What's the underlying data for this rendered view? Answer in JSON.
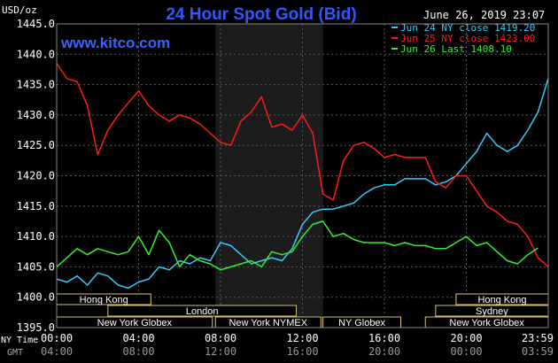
{
  "chart_data": {
    "type": "line",
    "title": "24 Hour Spot Gold (Bid)",
    "watermark": "www.kitco.com",
    "ylabel": "USD/oz",
    "timestamp": "June 26, 2019 23:07",
    "ylim": [
      1395.0,
      1445.0
    ],
    "yticks": [
      "1445.0",
      "1440.0",
      "1435.0",
      "1430.0",
      "1425.0",
      "1420.0",
      "1415.0",
      "1410.0",
      "1405.0",
      "1400.0",
      "1395.0"
    ],
    "xlim": [
      0,
      24
    ],
    "xticks_ny": [
      "00:00",
      "04:00",
      "08:00",
      "12:00",
      "16:00",
      "20:00",
      "23:59"
    ],
    "xticks_gmt": [
      "04:00",
      "08:00",
      "12:00",
      "16:00",
      "20:00",
      "00:00",
      "03:59"
    ],
    "xlabel_ny": "NY Time",
    "xlabel_gmt": "GMT",
    "grid": true,
    "legend_position": "top-right",
    "shaded_region": [
      7.75,
      13.0
    ],
    "series": [
      {
        "name": "Jun 24 NY close 1419.20",
        "color": "#33ccff",
        "x": [
          0,
          0.5,
          1,
          1.5,
          2,
          2.5,
          3,
          3.5,
          4,
          4.5,
          5,
          5.5,
          6,
          6.5,
          7,
          7.5,
          8,
          8.5,
          9,
          9.5,
          10,
          10.5,
          11,
          11.5,
          12,
          12.5,
          13,
          13.5,
          14,
          14.5,
          15,
          15.5,
          16,
          16.5,
          17,
          17.5,
          18,
          18.5,
          19,
          19.5,
          20,
          20.5,
          21,
          21.5,
          22,
          22.5,
          23,
          23.5,
          24
        ],
        "y": [
          1403,
          1402.5,
          1403.5,
          1402,
          1404,
          1403.5,
          1402,
          1401.5,
          1402.5,
          1403,
          1405,
          1404.5,
          1406,
          1405.5,
          1406.5,
          1406,
          1409,
          1408.5,
          1407,
          1405.5,
          1406,
          1406.5,
          1406,
          1408,
          1412,
          1414,
          1414.5,
          1414.5,
          1415,
          1415.5,
          1417,
          1418,
          1418.5,
          1418.5,
          1419.5,
          1419.5,
          1419.5,
          1418.5,
          1419,
          1420,
          1422,
          1424,
          1427,
          1425,
          1424,
          1425,
          1427.5,
          1430.5,
          1436
        ]
      },
      {
        "name": "Jun 25 NY close 1423.00",
        "color": "#ff1a1a",
        "x": [
          0,
          0.5,
          1,
          1.5,
          2,
          2.5,
          3,
          3.5,
          4,
          4.5,
          5,
          5.5,
          6,
          6.5,
          7,
          7.5,
          8,
          8.5,
          9,
          9.5,
          10,
          10.5,
          11,
          11.5,
          12,
          12.5,
          13,
          13.5,
          14,
          14.5,
          15,
          15.5,
          16,
          16.5,
          17,
          17.5,
          18,
          18.5,
          19,
          19.5,
          20,
          20.5,
          21,
          21.5,
          22,
          22.5,
          23,
          23.5,
          24
        ],
        "y": [
          1438.5,
          1436,
          1435.5,
          1431.5,
          1423.5,
          1427.5,
          1430,
          1432,
          1434,
          1431.5,
          1430,
          1429,
          1430,
          1429.5,
          1428.5,
          1427,
          1425.5,
          1425,
          1429,
          1430.5,
          1433,
          1428,
          1428.5,
          1427.5,
          1430,
          1427,
          1417,
          1416,
          1422.5,
          1425,
          1425.5,
          1424.5,
          1423,
          1423.5,
          1423,
          1423,
          1423,
          1419,
          1418,
          1420,
          1420,
          1417.5,
          1415,
          1414,
          1412.5,
          1412,
          1410,
          1406.5,
          1405
        ]
      },
      {
        "name": "Jun 26 Last 1408.10",
        "color": "#33ee33",
        "x": [
          0,
          0.5,
          1,
          1.5,
          2,
          2.5,
          3,
          3.5,
          4,
          4.5,
          5,
          5.5,
          6,
          6.5,
          7,
          7.5,
          8,
          8.5,
          9,
          9.5,
          10,
          10.5,
          11,
          11.5,
          12,
          12.5,
          13,
          13.5,
          14,
          14.5,
          15,
          15.5,
          16,
          16.5,
          17,
          17.5,
          18,
          18.5,
          19,
          19.5,
          20,
          20.5,
          21,
          21.5,
          22,
          22.5,
          23,
          23.5
        ],
        "y": [
          1405,
          1406.5,
          1408,
          1407,
          1408,
          1407.5,
          1407,
          1407.5,
          1410,
          1407,
          1411,
          1409,
          1405,
          1407,
          1406,
          1405.5,
          1404.5,
          1405,
          1405.5,
          1406,
          1405,
          1407.5,
          1407,
          1407.5,
          1410,
          1412,
          1412.5,
          1410,
          1410.5,
          1409.5,
          1409,
          1409,
          1409,
          1408.5,
          1409,
          1408.5,
          1408.5,
          1408,
          1408,
          1409,
          1410,
          1408.5,
          1409,
          1407.5,
          1406,
          1405.5,
          1407,
          1408.1
        ]
      }
    ],
    "sessions": [
      {
        "label": "Hong Kong",
        "start": 0,
        "end": 4.6,
        "row": 0
      },
      {
        "label": "London",
        "start": 2.5,
        "end": 11.7,
        "row": 1
      },
      {
        "label": "New York Globex",
        "start": 0,
        "end": 7.6,
        "row": 2
      },
      {
        "label": "New York NYMEX",
        "start": 7.75,
        "end": 12.9,
        "row": 2
      },
      {
        "label": "NY Globex",
        "start": 13.0,
        "end": 16.8,
        "row": 2
      },
      {
        "label": "Hong Kong",
        "start": 19.5,
        "end": 24,
        "row": 0
      },
      {
        "label": "Sydney",
        "start": 18.5,
        "end": 24,
        "row": 1
      },
      {
        "label": "New York Globex",
        "start": 18.0,
        "end": 24,
        "row": 2
      }
    ]
  }
}
